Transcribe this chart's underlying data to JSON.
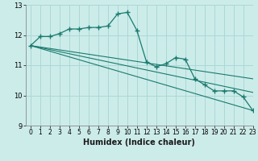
{
  "xlabel": "Humidex (Indice chaleur)",
  "bg_color": "#ccecea",
  "grid_color": "#aad8d5",
  "line_color": "#1a7a6e",
  "ylim": [
    9,
    13
  ],
  "xlim": [
    -0.5,
    23
  ],
  "yticks": [
    9,
    10,
    11,
    12,
    13
  ],
  "xticks": [
    0,
    1,
    2,
    3,
    4,
    5,
    6,
    7,
    8,
    9,
    10,
    11,
    12,
    13,
    14,
    15,
    16,
    17,
    18,
    19,
    20,
    21,
    22,
    23
  ],
  "series": [
    {
      "x": [
        0,
        1,
        2,
        3,
        4,
        5,
        6,
        7,
        8,
        9,
        10,
        11,
        12,
        13,
        14,
        15,
        16,
        17,
        18,
        19,
        20,
        21,
        22,
        23
      ],
      "y": [
        11.65,
        11.95,
        11.95,
        12.05,
        12.2,
        12.2,
        12.25,
        12.25,
        12.3,
        12.7,
        12.75,
        12.15,
        11.1,
        10.95,
        11.05,
        11.25,
        11.2,
        10.55,
        10.35,
        10.15,
        10.15,
        10.15,
        9.95,
        9.5
      ],
      "has_markers": true
    },
    {
      "x": [
        0,
        23
      ],
      "y": [
        11.65,
        9.5
      ],
      "has_markers": false
    },
    {
      "x": [
        0,
        23
      ],
      "y": [
        11.65,
        10.1
      ],
      "has_markers": false
    },
    {
      "x": [
        0,
        23
      ],
      "y": [
        11.65,
        10.55
      ],
      "has_markers": false
    }
  ]
}
